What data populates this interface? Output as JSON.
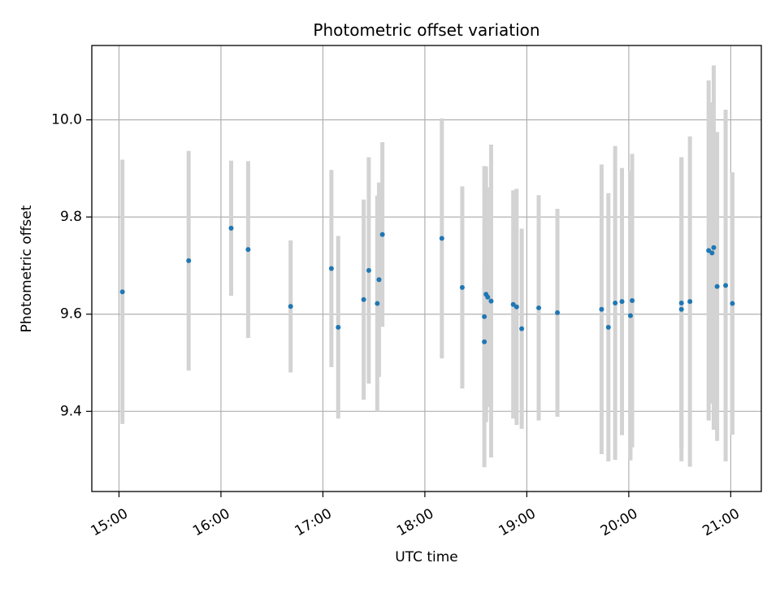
{
  "chart_data": {
    "type": "scatter",
    "title": "Photometric offset variation",
    "xlabel": "UTC time",
    "ylabel": "Photometric offset",
    "xlim": [
      "14:44",
      "21:18"
    ],
    "ylim": [
      9.235,
      10.153
    ],
    "grid": true,
    "x_ticks": [
      "15:00",
      "16:00",
      "17:00",
      "18:00",
      "19:00",
      "20:00",
      "21:00"
    ],
    "y_ticks": [
      "9.4",
      "9.6",
      "9.8",
      "10.0"
    ],
    "colors": {
      "point": "#1f77b4",
      "errorbar": "#d3d3d3",
      "grid": "#b0b0b0"
    },
    "points": [
      {
        "x": "15:02",
        "y": 9.646,
        "err": 0.272
      },
      {
        "x": "15:41",
        "y": 9.71,
        "err": 0.226
      },
      {
        "x": "16:06",
        "y": 9.777,
        "err": 0.139
      },
      {
        "x": "16:16",
        "y": 9.733,
        "err": 0.182
      },
      {
        "x": "16:41",
        "y": 9.616,
        "err": 0.136
      },
      {
        "x": "17:05",
        "y": 9.694,
        "err": 0.203
      },
      {
        "x": "17:09",
        "y": 9.573,
        "err": 0.188
      },
      {
        "x": "17:24",
        "y": 9.63,
        "err": 0.206
      },
      {
        "x": "17:27",
        "y": 9.69,
        "err": 0.233
      },
      {
        "x": "17:32",
        "y": 9.622,
        "err": 0.222
      },
      {
        "x": "17:33",
        "y": 9.671,
        "err": 0.2
      },
      {
        "x": "17:35",
        "y": 9.764,
        "err": 0.19
      },
      {
        "x": "18:10",
        "y": 9.756,
        "err": 0.247
      },
      {
        "x": "18:22",
        "y": 9.655,
        "err": 0.208
      },
      {
        "x": "18:35",
        "y": 9.543,
        "err": 0.161
      },
      {
        "x": "18:35",
        "y": 9.595,
        "err": 0.31
      },
      {
        "x": "18:36",
        "y": 9.641,
        "err": 0.263
      },
      {
        "x": "18:37",
        "y": 9.635,
        "err": 0.226
      },
      {
        "x": "18:39",
        "y": 9.627,
        "err": 0.322
      },
      {
        "x": "18:52",
        "y": 9.62,
        "err": 0.235
      },
      {
        "x": "18:54",
        "y": 9.615,
        "err": 0.243
      },
      {
        "x": "18:57",
        "y": 9.57,
        "err": 0.206
      },
      {
        "x": "19:07",
        "y": 9.613,
        "err": 0.232
      },
      {
        "x": "19:18",
        "y": 9.603,
        "err": 0.214
      },
      {
        "x": "19:44",
        "y": 9.61,
        "err": 0.298
      },
      {
        "x": "19:48",
        "y": 9.573,
        "err": 0.276
      },
      {
        "x": "19:52",
        "y": 9.623,
        "err": 0.323
      },
      {
        "x": "19:56",
        "y": 9.626,
        "err": 0.275
      },
      {
        "x": "20:01",
        "y": 9.597,
        "err": 0.298
      },
      {
        "x": "20:02",
        "y": 9.628,
        "err": 0.302
      },
      {
        "x": "20:31",
        "y": 9.61,
        "err": 0.313
      },
      {
        "x": "20:31",
        "y": 9.623,
        "err": 0.3
      },
      {
        "x": "20:36",
        "y": 9.626,
        "err": 0.34
      },
      {
        "x": "20:47",
        "y": 9.731,
        "err": 0.35
      },
      {
        "x": "20:49",
        "y": 9.726,
        "err": 0.31
      },
      {
        "x": "20:50",
        "y": 9.737,
        "err": 0.375
      },
      {
        "x": "20:52",
        "y": 9.657,
        "err": 0.318
      },
      {
        "x": "20:57",
        "y": 9.659,
        "err": 0.362
      },
      {
        "x": "21:01",
        "y": 9.622,
        "err": 0.27
      }
    ]
  }
}
